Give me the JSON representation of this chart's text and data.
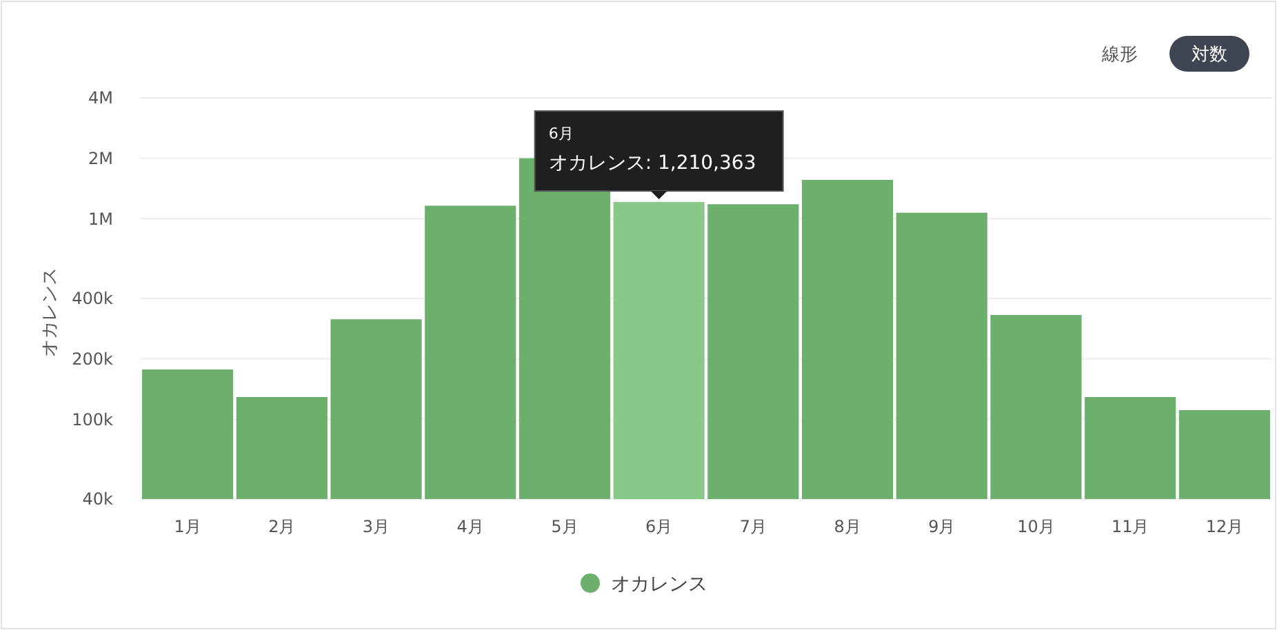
{
  "chart_data": {
    "type": "bar",
    "ylabel": "オカレンス",
    "categories": [
      "1月",
      "2月",
      "3月",
      "4月",
      "5月",
      "6月",
      "7月",
      "8月",
      "9月",
      "10月",
      "11月",
      "12月"
    ],
    "series": [
      {
        "name": "オカレンス",
        "color": "#6daf6d",
        "colors": [
          "#6daf6d",
          "#6daf6d",
          "#6daf6d",
          "#6daf6d",
          "#6daf6d",
          "#88c888",
          "#6daf6d",
          "#6daf6d",
          "#6daf6d",
          "#6daf6d",
          "#6daf6d",
          "#6daf6d"
        ],
        "values": [
          177000,
          129000,
          315000,
          1160000,
          2000000,
          1210363,
          1180000,
          1560000,
          1070000,
          331000,
          129000,
          111000
        ]
      }
    ],
    "log": true,
    "ylim": [
      40000,
      4000000
    ],
    "yticks": [
      {
        "value": 40000,
        "label": "40k"
      },
      {
        "value": 100000,
        "label": "100k"
      },
      {
        "value": 200000,
        "label": "200k"
      },
      {
        "value": 400000,
        "label": "400k"
      },
      {
        "value": 1000000,
        "label": "1M"
      },
      {
        "value": 2000000,
        "label": "2M"
      },
      {
        "value": 4000000,
        "label": "4M"
      }
    ],
    "grid": "y",
    "legend": "bottom",
    "annotations": [
      "6月",
      {
        "text": "オカレンス: 1,210,363",
        "x": "6月",
        "y": 1210363
      },
      "線形",
      "対数"
    ]
  }
}
